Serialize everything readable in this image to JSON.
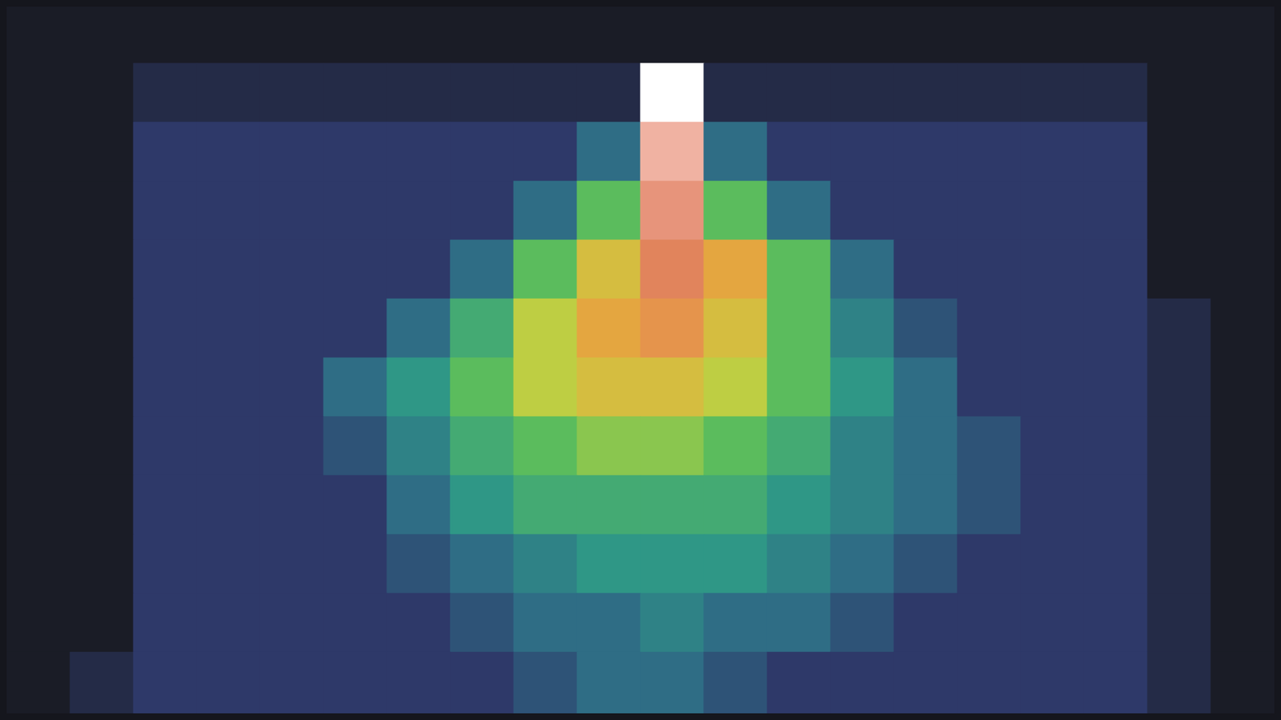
{
  "chart_data": {
    "type": "heatmap",
    "tick_labels": false,
    "grid": false,
    "cells": [
      [
        1,
        1,
        1,
        1,
        1,
        1,
        1,
        1,
        1,
        1,
        1,
        1,
        1,
        1,
        1,
        1,
        1,
        1,
        1,
        1
      ],
      [
        1,
        1,
        1.5,
        1.5,
        1.5,
        1.5,
        1.5,
        1.5,
        1.5,
        1.5,
        9.5,
        1.5,
        1.5,
        1.5,
        1.5,
        1.5,
        1.5,
        1.5,
        1,
        1
      ],
      [
        1,
        1,
        2,
        2,
        2,
        2,
        2,
        2,
        2,
        3,
        9,
        3,
        2,
        2,
        2,
        2,
        2,
        2,
        1,
        1
      ],
      [
        1,
        1,
        2,
        2,
        2,
        2,
        2,
        2,
        3,
        5,
        8.5,
        5,
        3,
        2,
        2,
        2,
        2,
        2,
        1,
        1
      ],
      [
        1,
        1,
        2,
        2,
        2,
        2,
        2,
        3,
        5,
        6.5,
        8,
        7,
        5,
        3,
        2,
        2,
        2,
        2,
        1,
        1
      ],
      [
        1,
        1,
        2,
        2,
        2,
        2,
        3,
        4.5,
        6,
        7,
        7.5,
        6.5,
        5,
        3.5,
        2.5,
        2,
        2,
        2,
        1.5,
        1
      ],
      [
        1,
        1,
        2,
        2,
        2,
        3,
        4,
        5,
        6,
        6.5,
        6.5,
        6,
        5,
        4,
        3,
        2,
        2,
        2,
        1.5,
        1
      ],
      [
        1,
        1,
        2,
        2,
        2,
        2.5,
        3.5,
        4.5,
        5,
        5.5,
        5.5,
        5,
        4.5,
        3.5,
        3,
        2.5,
        2,
        2,
        1.5,
        1
      ],
      [
        1,
        1,
        2,
        2,
        2,
        2,
        3,
        4,
        4.5,
        4.5,
        4.5,
        4.5,
        4,
        3.5,
        3,
        2.5,
        2,
        2,
        1.5,
        1
      ],
      [
        1,
        1,
        2,
        2,
        2,
        2,
        2.5,
        3,
        3.5,
        4,
        4,
        4,
        3.5,
        3,
        2.5,
        2,
        2,
        2,
        1.5,
        1
      ],
      [
        1,
        1,
        2,
        2,
        2,
        2,
        2,
        2.5,
        3,
        3,
        3.5,
        3,
        3,
        2.5,
        2,
        2,
        2,
        2,
        1.5,
        1
      ],
      [
        1,
        1.5,
        2,
        2,
        2,
        2,
        2,
        2,
        2.5,
        3,
        3,
        2.5,
        2,
        2,
        2,
        2,
        2,
        2,
        1.5,
        1
      ]
    ]
  }
}
